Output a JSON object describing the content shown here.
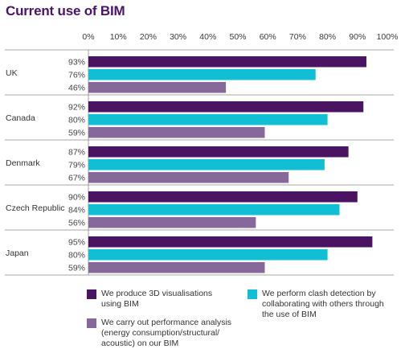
{
  "title": "Current use of BIM",
  "chart_data": {
    "type": "bar",
    "orientation": "horizontal",
    "categories": [
      "UK",
      "Canada",
      "Denmark",
      "Czech Republic",
      "Japan"
    ],
    "series": [
      {
        "name": "We produce 3D visualisations using BIM",
        "color": "#4a1463",
        "values": [
          93,
          92,
          87,
          90,
          95
        ]
      },
      {
        "name": "We perform clash detection by collaborating with others through the use of BIM",
        "color": "#10bfd4",
        "values": [
          76,
          80,
          79,
          84,
          80
        ]
      },
      {
        "name": "We carry out performance analysis (energy consumption/structural/ acoustic) on our BIM",
        "color": "#86699a",
        "values": [
          46,
          59,
          67,
          56,
          59
        ]
      }
    ],
    "xticks": [
      "0%",
      "10%",
      "20%",
      "30%",
      "40%",
      "50%",
      "60%",
      "70%",
      "80%",
      "90%",
      "100%"
    ],
    "xlim": [
      0,
      100
    ],
    "value_labels": [
      [
        "93%",
        "76%",
        "46%"
      ],
      [
        "92%",
        "80%",
        "59%"
      ],
      [
        "87%",
        "79%",
        "67%"
      ],
      [
        "90%",
        "84%",
        "56%"
      ],
      [
        "95%",
        "80%",
        "59%"
      ]
    ],
    "legend_position": "bottom",
    "grid": false
  },
  "legend": {
    "items": [
      {
        "lines": [
          "We produce 3D visualisations",
          "using BIM"
        ],
        "color": "#4a1463"
      },
      {
        "lines": [
          "We perform clash detection by",
          "collaborating with others through",
          "the use of BIM"
        ],
        "color": "#10bfd4"
      },
      {
        "lines": [
          "We carry out performance analysis",
          "(energy consumption/structural/",
          "acoustic) on our BIM"
        ],
        "color": "#86699a"
      }
    ]
  }
}
